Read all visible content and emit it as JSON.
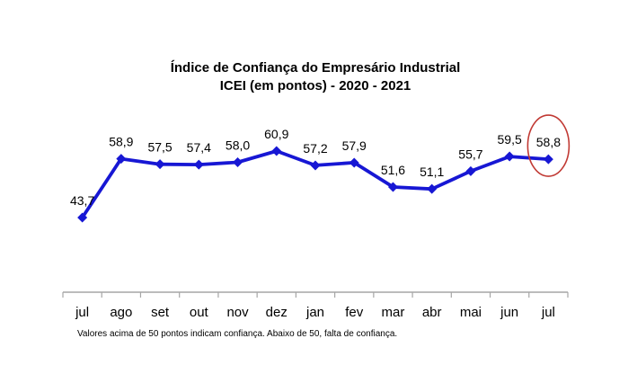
{
  "title": {
    "line1": "Índice de Confiança do Empresário Industrial",
    "line2": "ICEI (em pontos) - 2020 - 2021"
  },
  "footnote": "Valores acima de 50 pontos indicam confiança. Abaixo de 50, falta de confiança.",
  "chart_data": {
    "type": "line",
    "title": "Índice de Confiança do Empresário Industrial",
    "subtitle": "ICEI (em pontos) - 2020 - 2021",
    "categories": [
      "jul",
      "ago",
      "set",
      "out",
      "nov",
      "dez",
      "jan",
      "fev",
      "mar",
      "abr",
      "mai",
      "jun",
      "jul"
    ],
    "values": [
      43.7,
      58.9,
      57.5,
      57.4,
      58.0,
      60.9,
      57.2,
      57.9,
      51.6,
      51.1,
      55.7,
      59.5,
      58.8
    ],
    "value_labels": [
      "43,7",
      "58,9",
      "57,5",
      "57,4",
      "58,0",
      "60,9",
      "57,2",
      "57,9",
      "51,6",
      "51,1",
      "55,7",
      "59,5",
      "58,8"
    ],
    "xlabel": "",
    "ylabel": "",
    "grid": false,
    "legend": "none",
    "marker": "diamond",
    "annotation": {
      "highlighted_index": 12,
      "highlighted_label": "58,8",
      "shape": "ellipse",
      "color": "#c13a34"
    },
    "colors": {
      "line": "#1717d4",
      "axis": "#a6a6a6",
      "text": "#000000"
    }
  }
}
